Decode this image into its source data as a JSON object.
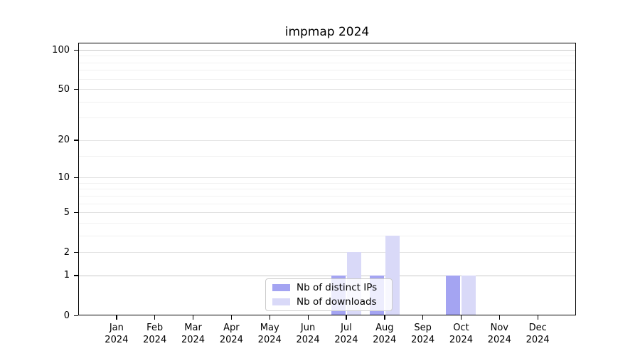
{
  "chart_data": {
    "type": "bar",
    "title": "impmap 2024",
    "categories": [
      "Jan",
      "Feb",
      "Mar",
      "Apr",
      "May",
      "Jun",
      "Jul",
      "Aug",
      "Sep",
      "Oct",
      "Nov",
      "Dec"
    ],
    "category_year": "2024",
    "series": [
      {
        "name": "Nb of distinct IPs",
        "color": "#a4a4f2",
        "values": [
          0,
          0,
          0,
          0,
          0,
          0,
          1,
          1,
          0,
          1,
          0,
          0
        ]
      },
      {
        "name": "Nb of downloads",
        "color": "#d9d9f8",
        "values": [
          0,
          0,
          0,
          0,
          0,
          0,
          2,
          3,
          0,
          1,
          0,
          0
        ]
      }
    ],
    "xlabel": "",
    "ylabel": "",
    "y_axis": {
      "scale": "log1p",
      "ticks": [
        0,
        1,
        2,
        5,
        10,
        20,
        50,
        100
      ],
      "minor_gridlines": [
        3,
        4,
        6,
        7,
        8,
        9,
        15,
        30,
        40,
        60,
        70,
        80,
        90
      ],
      "ylim": [
        0,
        113
      ]
    },
    "grid": "on",
    "legend_position": "lower-center",
    "colors": {
      "major_gridline": "#e2e2e2",
      "decade_gridline": "#c8c8c8",
      "minor_gridline": "#f1f1f1",
      "axis": "#000000",
      "legend_border": "#cccccc"
    }
  }
}
